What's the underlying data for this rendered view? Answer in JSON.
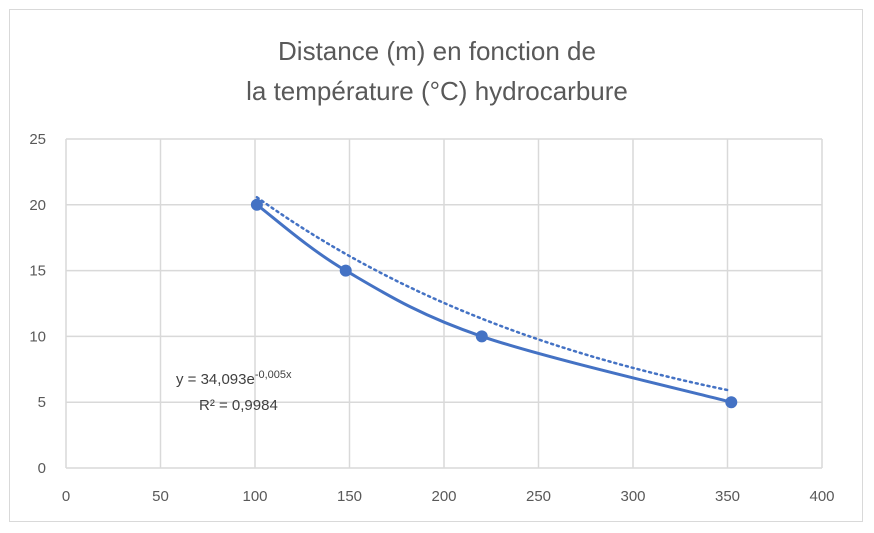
{
  "chart_data": {
    "type": "scatter",
    "title_lines": [
      "Distance (m) en fonction de",
      "la température (°C) hydrocarbure"
    ],
    "xlabel": "",
    "ylabel": "",
    "xlim": [
      0,
      400
    ],
    "ylim": [
      0,
      25
    ],
    "x_ticks": [
      0,
      50,
      100,
      150,
      200,
      250,
      300,
      350,
      400
    ],
    "y_ticks": [
      0,
      5,
      10,
      15,
      20,
      25
    ],
    "grid": true,
    "series": [
      {
        "x": [
          101,
          148,
          220,
          352
        ],
        "y": [
          20,
          15,
          10,
          5
        ],
        "line": "smooth",
        "markers": true,
        "color": "#4472C4"
      }
    ],
    "trendline": {
      "type": "exponential",
      "a": 34.093,
      "b": -0.005,
      "style": "dotted",
      "color": "#4472C4",
      "equation_main": "y = 34,093e",
      "equation_exp": "-0,005x",
      "r2_label": "R² = 0,9984"
    }
  }
}
